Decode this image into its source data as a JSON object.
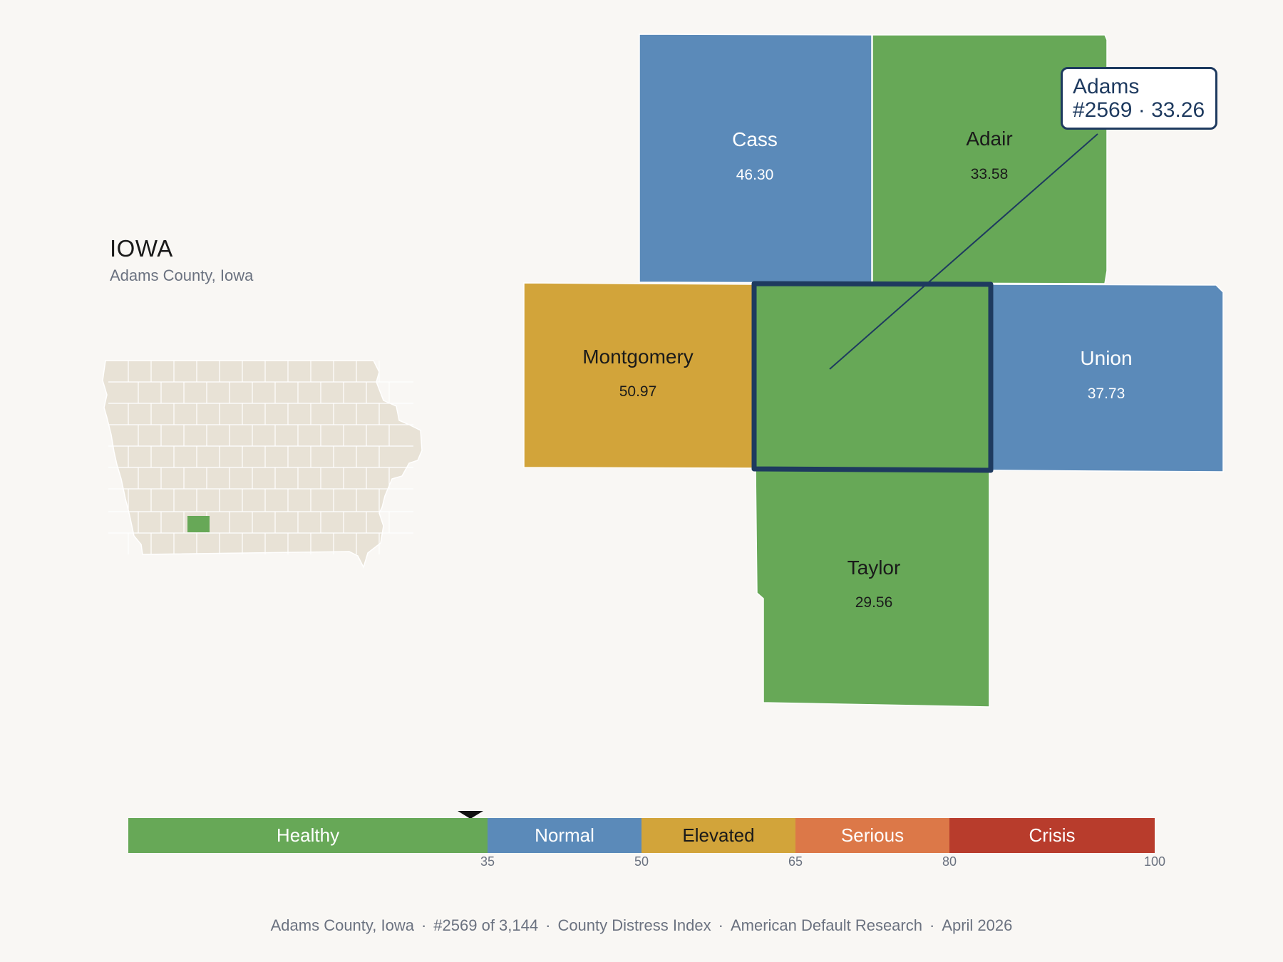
{
  "header": {
    "state": "IOWA",
    "subtitle": "Adams County, Iowa"
  },
  "counties": [
    {
      "key": "cass",
      "name": "Cass",
      "value": "46.30",
      "status": "Normal"
    },
    {
      "key": "adair",
      "name": "Adair",
      "value": "33.58",
      "status": "Healthy"
    },
    {
      "key": "montgomery",
      "name": "Montgomery",
      "value": "50.97",
      "status": "Elevated"
    },
    {
      "key": "union",
      "name": "Union",
      "value": "37.73",
      "status": "Normal"
    },
    {
      "key": "taylor",
      "name": "Taylor",
      "value": "29.56",
      "status": "Healthy"
    },
    {
      "key": "adams",
      "name": "Adams",
      "value": "33.26",
      "status": "Healthy",
      "selected": true
    }
  ],
  "tooltip": {
    "name": "Adams",
    "detail": "#2569 · 33.26"
  },
  "scale": {
    "segments": [
      {
        "label": "Healthy",
        "from": 0,
        "to": 35,
        "color": "#67a857"
      },
      {
        "label": "Normal",
        "from": 35,
        "to": 50,
        "color": "#5b8ab9"
      },
      {
        "label": "Elevated",
        "from": 50,
        "to": 65,
        "color": "#d2a43a"
      },
      {
        "label": "Serious",
        "from": 65,
        "to": 80,
        "color": "#dc7848"
      },
      {
        "label": "Crisis",
        "from": 80,
        "to": 100,
        "color": "#b83c2c"
      }
    ],
    "ticks": [
      "35",
      "50",
      "65",
      "80",
      "100"
    ],
    "marker_value": 33.26
  },
  "footer": {
    "county": "Adams County, Iowa",
    "rank": "#2569 of 3,144",
    "index": "County Distress Index",
    "source": "American Default Research",
    "date": "April 2026"
  },
  "colors": {
    "healthy": "#67a857",
    "normal": "#5b8ab9",
    "elevated": "#d2a43a",
    "serious": "#dc7848",
    "crisis": "#b83c2c",
    "accent": "#1e3a5f",
    "state_fill": "#e8e2d6"
  }
}
